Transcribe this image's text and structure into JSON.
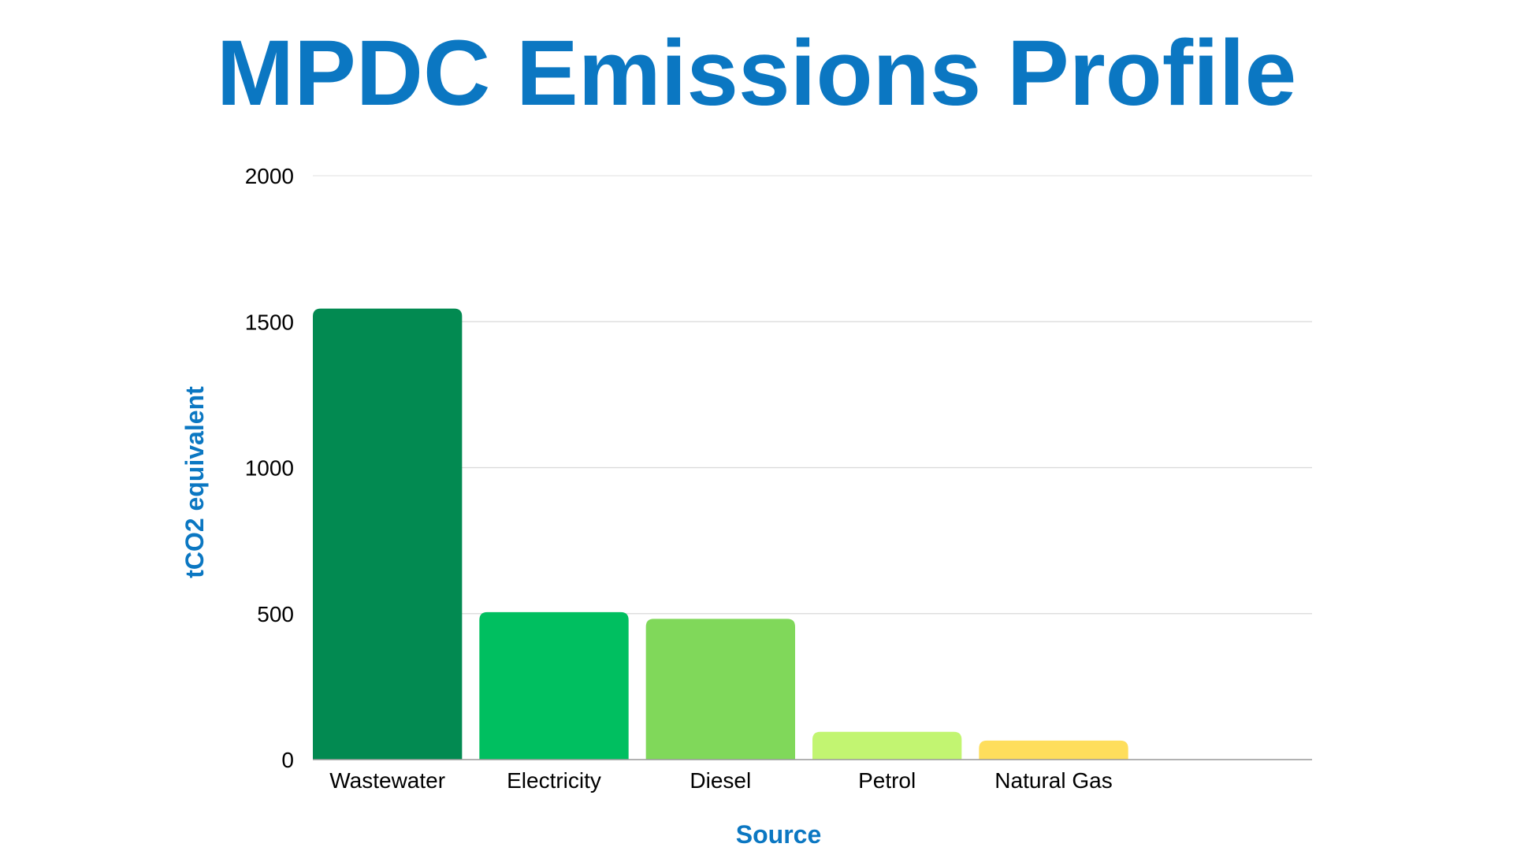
{
  "colors": {
    "title": "#0B77C2",
    "axis_title": "#0B77C2",
    "gridline": "#D9D9D9",
    "baseline": "#999999",
    "bars": [
      "#028A51",
      "#00BF60",
      "#80D85A",
      "#C2F571",
      "#FEDE5C"
    ]
  },
  "chart_data": {
    "type": "bar",
    "title": "MPDC Emissions Profile",
    "xlabel": "Source",
    "ylabel": "tCO2 equivalent",
    "categories": [
      "Wastewater",
      "Electricity",
      "Diesel",
      "Petrol",
      "Natural Gas",
      ""
    ],
    "values": [
      1545,
      505,
      482,
      95,
      65,
      0
    ],
    "ylim": [
      0,
      2000
    ],
    "yticks": [
      "0",
      "500",
      "1000",
      "1500",
      "2000"
    ],
    "ytick_values": [
      0,
      500,
      1000,
      1500,
      2000
    ],
    "grid": true,
    "legend": "none"
  }
}
